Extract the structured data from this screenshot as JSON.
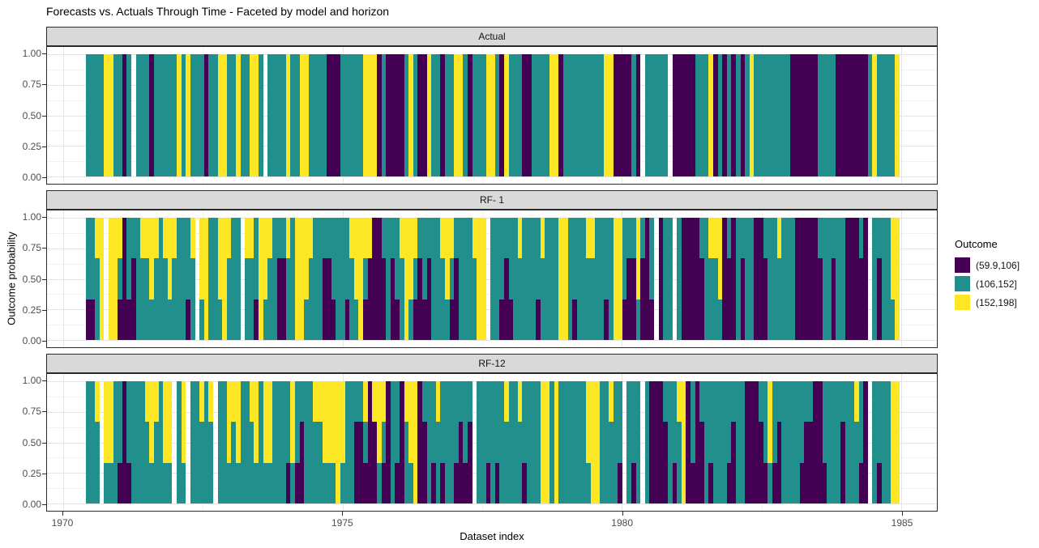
{
  "title": "Forecasts vs. Actuals Through Time - Faceted by model and horizon",
  "axes": {
    "x_title": "Dataset index",
    "y_title": "Outcome probability",
    "x_tick_labels": [
      "1970",
      "1975",
      "1980",
      "1985"
    ],
    "y_tick_labels": [
      "1.00",
      "0.75",
      "0.50",
      "0.25",
      "0.00"
    ]
  },
  "legend": {
    "title": "Outcome",
    "items": [
      {
        "label": "(59.9,106]",
        "color": "#440154"
      },
      {
        "label": "(106,152]",
        "color": "#21908C"
      },
      {
        "label": "(152,198]",
        "color": "#FDE725"
      }
    ]
  },
  "chart_data": {
    "type": "bar",
    "subtype": "stacked 100%-fill monthly time-series, 3 vertical facets (model/horizon)",
    "title": "Forecasts vs. Actuals Through Time - Faceted by model and horizon",
    "xlabel": "Dataset index",
    "ylabel": "Outcome probability",
    "x_range_years": [
      1969.9,
      1985.6
    ],
    "bars_span_years": [
      1970.4,
      1985.0
    ],
    "ylim": [
      0,
      1
    ],
    "grid": true,
    "legend_position": "right",
    "x_ticks": {
      "values": [
        1970,
        1975,
        1980,
        1985
      ],
      "pos_pct": [
        1.818,
        33.212,
        64.606,
        96.0
      ],
      "minor_pos_pct": [
        17.515,
        48.909,
        80.303
      ]
    },
    "y_ticks": {
      "values": [
        1,
        0.75,
        0.5,
        0.25,
        0
      ],
      "labels": [
        "1.00",
        "0.75",
        "0.50",
        "0.25",
        "0.00"
      ],
      "minor_values": [
        0.875,
        0.625,
        0.375,
        0.125
      ]
    },
    "colors": {
      "purple": "#440154",
      "teal": "#21908C",
      "yellow": "#FDE725"
    },
    "outcome_levels": {
      "purple": "(59.9,106]",
      "teal": "(106,152]",
      "yellow": "(152,198]"
    },
    "encoding": "One 2-char code per monthly bar, left-to-right. First digit = thirds of bar that are purple '(59.9,106]' (stacked at bottom); second digit = thirds that are yellow '(152,198]' (stacked on top); teal '(106,152]' fills the remainder (3 - p - y). '--' = missing month (white gap). All bars total 1.0 (outcome probability). Values estimated from pixels; Actual facet bars are single categories (probability 1).",
    "facets": [
      {
        "label": "Actual",
        "bars": "00 00 00 00 03 03 00 00 30 00 -- 00 00 00 30 00 00 00 00 00 03 00 03 00 00 00 30 00 00 03 03 00 00 03 00 00 03 03 00 -- 00 00 00 00 03 00 00 03 03 00 00 00 00 30 30 30 00 00 00 00 00 03 03 03 30 00 30 30 30 30 00 03 00 30 30 03 00 00 30 00 00 03 03 00 30 00 00 00 03 03 00 30 03 00 00 00 30 30 00 00 00 00 03 03 30 00 00 00 00 00 00 00 00 00 03 03 30 30 30 30 00 30 -- 00 00 00 00 00 -- 30 30 30 30 30 00 00 00 03 30 00 30 00 30 00 30 00 03 00 00 00 00 00 00 00 00 30 30 30 30 30 30 00 00 00 00 30 30 30 30 30 30 30 00 03 00 00 00 00 03"
      },
      {
        "label": "RF- 1",
        "bars": "10 10 01 03 -- 03 03 11 30 10 20 00 01 01 02 01 00 01 02 01 00 00 10 01 -- 02 03 00 00 02 03 01 00 00 -- 01 01 10 03 02 01 00 20 20 01 00 03 03 02 01 00 00 20 20 10 00 00 10 01 02 03 11 21 30 30 20 00 20 10 01 03 02 11 20 10 20 00 00 01 02 11 20 00 00 00 01 03 03 -- 00 00 10 20 10 00 01 00 00 00 10 01 00 00 00 03 03 00 10 00 00 01 01 00 00 10 00 03 03 10 20 20 02 20 30 10 -- 30 00 00 -- 00 30 30 30 30 20 00 01 01 02 30 20 30 00 20 00 00 30 30 20 00 00 01 00 00 00 30 30 30 30 30 20 00 00 20 00 00 30 30 30 20 30 -- 00 20 00 00 02 03"
      },
      {
        "label": "RF-12",
        "bars": "00 00 01 -- 02 02 00 10 30 10 00 00 00 01 02 01 00 02 02 -- 00 02 -- 00 00 01 00 01 -- 00 00 02 01 02 00 00 01 02 00 02 02 00 00 00 10 02 10 20 00 00 01 01 02 02 02 03 02 00 00 20 20 11 30 21 02 11 30 00 10 30 01 02 03 30 20 00 10 01 10 00 00 10 20 10 20 -- 00 00 10 00 10 00 01 00 00 01 10 00 00 00 03 03 00 03 00 00 00 00 00 00 02 03 03 00 00 01 00 10 -- 00 10 00 -- 00 30 30 30 20 00 10 01 03 30 10 30 20 00 10 00 00 00 10 20 00 00 30 30 30 20 10 02 10 20 00 00 00 00 10 20 20 30 30 10 00 00 00 20 00 00 01 10 30 -- 00 10 00 00 03 03"
      }
    ]
  }
}
